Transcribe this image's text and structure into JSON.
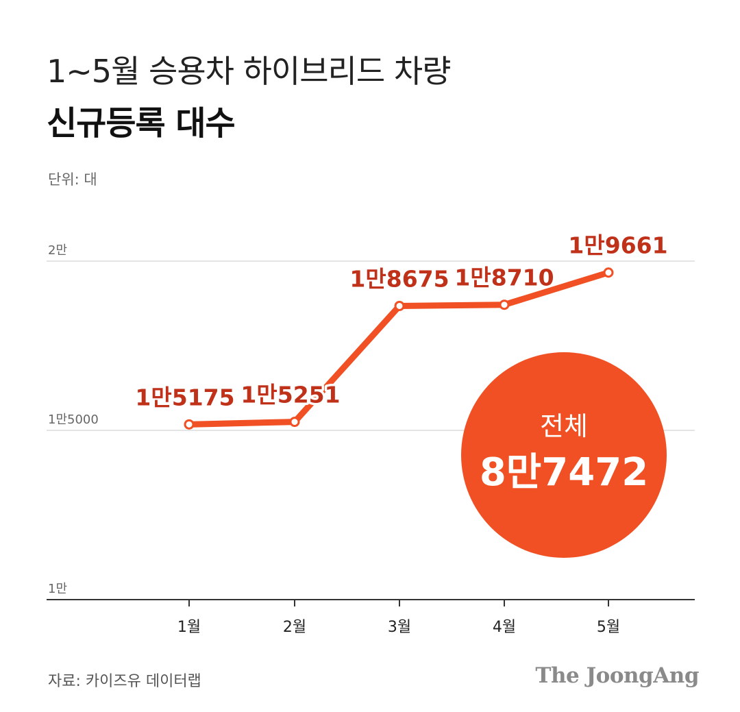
{
  "header": {
    "title_line1": "1~5월 승용차 하이브리드 차량",
    "title_line2": "신규등록 대수",
    "unit": "단위: 대"
  },
  "chart_data": {
    "type": "line",
    "title": "1~5월 승용차 하이브리드 차량 신규등록 대수",
    "categories": [
      "1월",
      "2월",
      "3월",
      "4월",
      "5월"
    ],
    "series": [
      {
        "values": [
          15175,
          15251,
          18675,
          18710,
          19661
        ],
        "labels": [
          "1만5175",
          "1만5251",
          "1만8675",
          "1만8710",
          "1만9661"
        ]
      }
    ],
    "ylim": [
      10000,
      20000
    ],
    "y_ticks": [
      {
        "value": 10000,
        "label": "1만"
      },
      {
        "value": 15000,
        "label": "1만5000"
      },
      {
        "value": 20000,
        "label": "2만"
      }
    ],
    "grid": true,
    "line_color": "#f05023",
    "label_color": "#c0311a",
    "total": {
      "label": "전체",
      "value": "8만7472",
      "color": "#f05023"
    }
  },
  "footer": {
    "source": "자료: 카이즈유 데이터랩",
    "brand": "The JoongAng"
  }
}
